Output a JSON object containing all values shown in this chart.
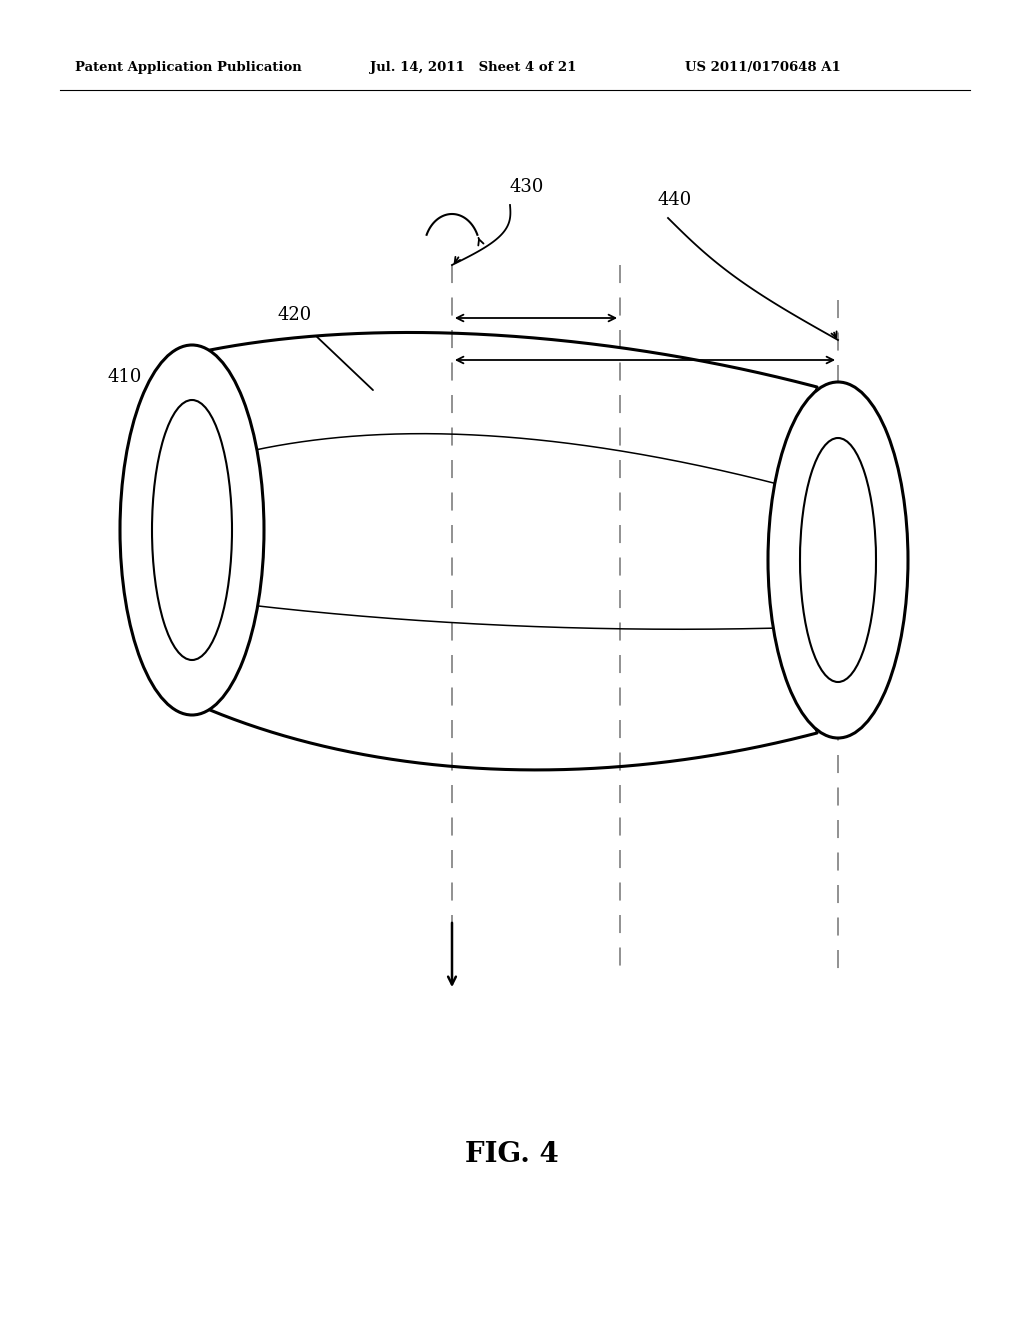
{
  "bg_color": "#ffffff",
  "line_color": "#000000",
  "header_left": "Patent Application Publication",
  "header_mid": "Jul. 14, 2011   Sheet 4 of 21",
  "header_right": "US 2011/0170648 A1",
  "caption": "FIG. 4",
  "lw_thick": 2.2,
  "lw_medium": 1.5,
  "lw_thin": 1.1,
  "dashed_color": "#888888",
  "figw": 10.24,
  "figh": 13.2
}
